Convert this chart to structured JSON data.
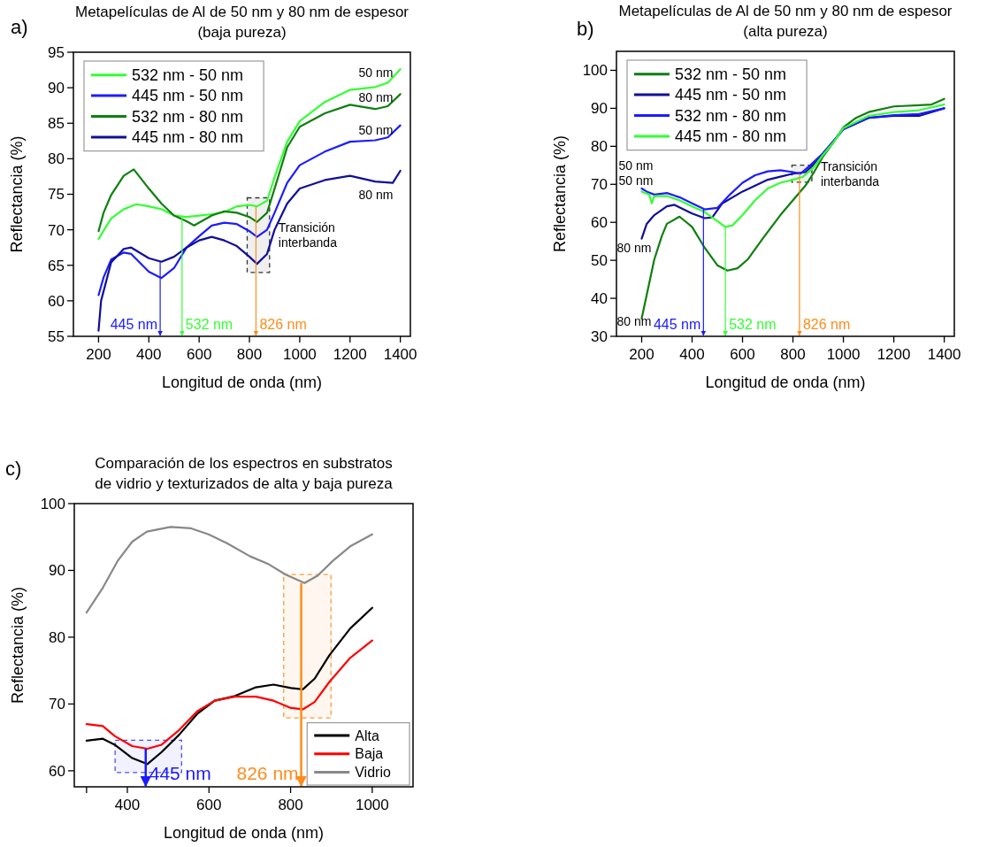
{
  "chart_data": [
    {
      "type": "line",
      "title": "Metapelículas de Al de 50 nm y 80 nm de espesor",
      "subtitle": "(baja pureza)",
      "xlabel": "Longitud de onda (nm)",
      "ylabel": "Reflectancia (%)",
      "xlim": [
        100,
        1440
      ],
      "ylim": [
        55,
        95
      ],
      "xticks": [
        200,
        400,
        600,
        800,
        1000,
        1200,
        1400
      ],
      "yticks": [
        55,
        60,
        65,
        70,
        75,
        80,
        85,
        90,
        95
      ],
      "legend": "top left",
      "annotations": [
        "a)",
        "50 nm",
        "80 nm",
        "50 nm",
        "80 nm"
      ],
      "ref_lines": [
        {
          "axis": "x",
          "value": 445,
          "label": "445 nm",
          "color": "#1a1aff"
        },
        {
          "axis": "x",
          "value": 532,
          "label": "532 nm",
          "color": "#33ff33"
        },
        {
          "axis": "x",
          "value": 826,
          "label": "826 nm",
          "color": "#ff8c1a"
        }
      ],
      "bands": [
        {
          "axis": "x",
          "from": 791,
          "to": 880,
          "label": "Transición\ninterbanda",
          "color": "#333333"
        }
      ],
      "series": [
        {
          "name": "532 nm - 50 nm",
          "color": "#33ff33",
          "x": [
            200,
            250,
            300,
            350,
            400,
            450,
            500,
            550,
            600,
            650,
            700,
            750,
            800,
            830,
            870,
            900,
            950,
            1000,
            1100,
            1200,
            1300,
            1350,
            1400
          ],
          "values": [
            68.7,
            71.6,
            72.9,
            73.6,
            73.3,
            72.9,
            72,
            71.8,
            72,
            72.2,
            72.5,
            73.3,
            73.5,
            73.3,
            74.1,
            77.4,
            82.4,
            85.3,
            88,
            89.7,
            90.1,
            90.7,
            92.6
          ]
        },
        {
          "name": "445 nm - 50 nm",
          "color": "#1c1cff",
          "x": [
            200,
            220,
            250,
            300,
            330,
            400,
            450,
            500,
            550,
            600,
            650,
            700,
            750,
            800,
            830,
            870,
            900,
            950,
            1000,
            1100,
            1200,
            1300,
            1350,
            1400
          ],
          "values": [
            60.8,
            63.3,
            65.8,
            66.8,
            66.6,
            64.1,
            63.2,
            64.6,
            67.5,
            69.1,
            70.6,
            71,
            70.8,
            69.8,
            69,
            70,
            72.4,
            76.6,
            79.1,
            81,
            82.4,
            82.6,
            83,
            84.7
          ]
        },
        {
          "name": "532 nm - 80 nm",
          "color": "#0f7f0f",
          "x": [
            200,
            220,
            250,
            300,
            340,
            400,
            450,
            500,
            550,
            580,
            650,
            700,
            750,
            800,
            830,
            870,
            900,
            950,
            1000,
            1100,
            1200,
            1300,
            1350,
            1400
          ],
          "values": [
            69.8,
            72.4,
            74.9,
            77.6,
            78.5,
            75.8,
            73.7,
            72,
            71.2,
            70.6,
            72,
            72.6,
            72.4,
            71.8,
            71.1,
            72.4,
            75.8,
            81.6,
            84.5,
            86.4,
            87.6,
            87,
            87.4,
            89.1
          ]
        },
        {
          "name": "445 nm - 80 nm",
          "color": "#0f0f9a",
          "x": [
            200,
            210,
            250,
            300,
            330,
            400,
            450,
            500,
            550,
            600,
            650,
            700,
            750,
            800,
            830,
            870,
            900,
            950,
            1000,
            1100,
            1200,
            1300,
            1370,
            1400
          ],
          "values": [
            55.8,
            60,
            65.4,
            67.3,
            67.5,
            66,
            65.5,
            66.2,
            67.5,
            68.5,
            69,
            68.5,
            67.7,
            66.2,
            65.2,
            66.6,
            70,
            73.7,
            75.8,
            77,
            77.6,
            76.8,
            76.6,
            78.3
          ]
        }
      ]
    },
    {
      "type": "line",
      "title": "Metapelículas de Al de 50 nm y 80 nm de espesor",
      "subtitle": "(alta pureza)",
      "xlabel": "Longitud de onda (nm)",
      "ylabel": "Reflectancia (%)",
      "xlim": [
        100,
        1440
      ],
      "ylim": [
        30,
        105
      ],
      "xticks": [
        200,
        400,
        600,
        800,
        1000,
        1200,
        1400
      ],
      "yticks": [
        30,
        40,
        50,
        60,
        70,
        80,
        90,
        100
      ],
      "legend": "top left",
      "annotations": [
        "b)",
        "50 nm",
        "50 nm",
        "80 nm",
        "80 nm"
      ],
      "ref_lines": [
        {
          "axis": "x",
          "value": 445,
          "label": "445 nm",
          "color": "#1a1aff"
        },
        {
          "axis": "x",
          "value": 532,
          "label": "532 nm",
          "color": "#33ff33"
        },
        {
          "axis": "x",
          "value": 826,
          "label": "826 nm",
          "color": "#ff8c1a"
        }
      ],
      "bands": [
        {
          "axis": "x",
          "from": 796,
          "to": 875,
          "label": "Transición\ninterbanda",
          "color": "#333333"
        }
      ],
      "series": [
        {
          "name": "532 nm - 50 nm",
          "color": "#0f7f0f",
          "x": [
            200,
            220,
            250,
            280,
            300,
            350,
            400,
            450,
            500,
            540,
            580,
            620,
            680,
            750,
            800,
            850,
            880,
            920,
            960,
            1000,
            1050,
            1100,
            1200,
            1300,
            1350,
            1400
          ],
          "values": [
            34.7,
            40.9,
            50.2,
            56.4,
            59.6,
            61.5,
            58.8,
            53.3,
            48.7,
            47.3,
            47.9,
            50.2,
            55.7,
            61.9,
            65.8,
            69.7,
            72.8,
            77.4,
            81,
            85,
            87.5,
            89,
            90.5,
            90.8,
            91,
            92.5
          ]
        },
        {
          "name": "445 nm - 50 nm",
          "color": "#0f0f9a",
          "x": [
            200,
            220,
            250,
            300,
            330,
            400,
            450,
            480,
            520,
            600,
            700,
            750,
            800,
            850,
            880,
            920,
            960,
            1000,
            1100,
            1200,
            1300,
            1400
          ],
          "values": [
            55.7,
            59.6,
            61.9,
            64.2,
            64.6,
            62.3,
            61.1,
            61.3,
            65,
            68.1,
            71.2,
            72,
            72.8,
            73.2,
            75.1,
            78.2,
            81.3,
            84.5,
            87.5,
            88,
            88,
            90
          ]
        },
        {
          "name": "532 nm - 80 nm",
          "color": "#1c1cff",
          "x": [
            200,
            220,
            250,
            300,
            350,
            400,
            450,
            500,
            550,
            600,
            650,
            700,
            750,
            800,
            830,
            870,
            920,
            960,
            1000,
            1100,
            1200,
            1300,
            1400
          ],
          "values": [
            68.9,
            68.1,
            67.3,
            67.7,
            66.6,
            65,
            63.4,
            63.8,
            67.3,
            70.4,
            72.4,
            73.4,
            73.7,
            73.2,
            72.8,
            75.1,
            78.2,
            81.3,
            84.5,
            87.5,
            88.2,
            88.5,
            90
          ]
        },
        {
          "name": "445 nm - 80 nm",
          "color": "#33ff33",
          "x": [
            200,
            230,
            240,
            250,
            300,
            350,
            400,
            450,
            500,
            532,
            560,
            600,
            650,
            700,
            750,
            800,
            840,
            880,
            920,
            960,
            1000,
            1100,
            1200,
            1300,
            1400
          ],
          "values": [
            68.1,
            67.3,
            65,
            66.9,
            66.9,
            65.8,
            64.2,
            62.7,
            60.3,
            58.8,
            59.2,
            61.9,
            65.8,
            68.9,
            70.4,
            71.2,
            72,
            74.3,
            77.8,
            81,
            84.8,
            88,
            89,
            89.5,
            91
          ]
        }
      ]
    },
    {
      "type": "line",
      "title": "Comparación de los espectros en substratos",
      "subtitle": "de vidrio y texturizados de alta y baja pureza",
      "xlabel": "Longitud de onda (nm)",
      "ylabel": "Reflectancia (%)",
      "xlim": [
        270,
        1100
      ],
      "ylim": [
        57.6,
        100
      ],
      "xticks": [
        {
          "value": 300,
          "label": null
        },
        400,
        600,
        800,
        1000
      ],
      "yticks": [
        60,
        70,
        80,
        90,
        100
      ],
      "legend": "bottom right",
      "annotations": [
        "c)"
      ],
      "ref_lines": [
        {
          "axis": "x",
          "value": 445,
          "label": "445 nm",
          "color": "#1a1aff"
        },
        {
          "axis": "x",
          "value": 826,
          "label": "826 nm",
          "color": "#ff8c1a"
        }
      ],
      "bands": [
        {
          "axis": "x",
          "from": 370,
          "to": 533,
          "color": "#4d4dff"
        },
        {
          "axis": "x",
          "from": 783,
          "to": 899,
          "color": "#ff9933"
        }
      ],
      "series": [
        {
          "name": "Alta",
          "color": "#000000",
          "x": [
            300,
            340,
            369,
            412,
            449,
            484,
            527,
            571,
            614,
            664,
            715,
            758,
            801,
            830,
            859,
            895,
            946,
            1000
          ],
          "values": [
            64.5,
            64.8,
            63.9,
            61.9,
            61,
            62.8,
            65.4,
            68.5,
            70.5,
            71.2,
            72.5,
            72.9,
            72.4,
            72.2,
            73.8,
            77.3,
            81.3,
            84.4
          ]
        },
        {
          "name": "Baja",
          "color": "#ff0000",
          "x": [
            300,
            340,
            369,
            412,
            449,
            484,
            527,
            571,
            614,
            664,
            715,
            758,
            801,
            830,
            859,
            895,
            946,
            1000
          ],
          "values": [
            67,
            66.7,
            65.2,
            63.7,
            63.3,
            63.9,
            66.1,
            68.9,
            70.5,
            71.1,
            71.1,
            70.5,
            69.4,
            69.2,
            70.3,
            73.3,
            76.9,
            79.5
          ]
        },
        {
          "name": "Vidrio",
          "color": "#888888",
          "x": [
            300,
            340,
            376,
            412,
            448,
            506,
            556,
            599,
            643,
            701,
            744,
            787,
            834,
            866,
            903,
            946,
            1000
          ],
          "values": [
            83.7,
            87.4,
            91.4,
            94.3,
            95.8,
            96.5,
            96.3,
            95.4,
            94.1,
            92.1,
            91,
            89.4,
            88.1,
            89.2,
            91.4,
            93.6,
            95.4
          ]
        }
      ]
    }
  ]
}
